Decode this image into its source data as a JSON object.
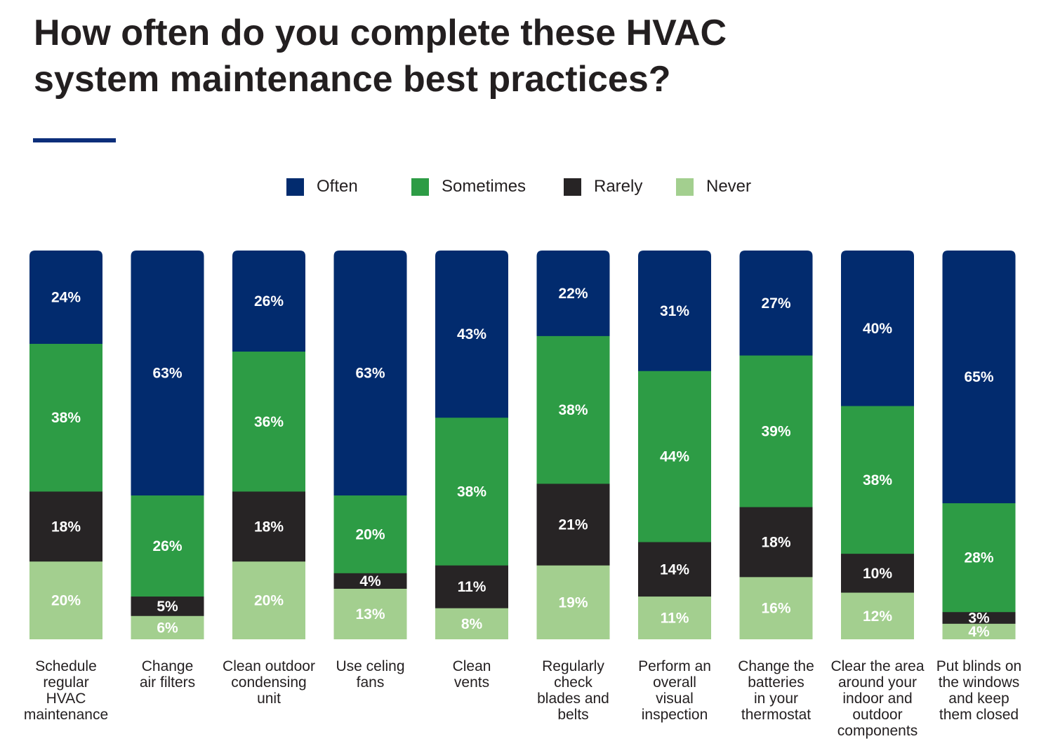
{
  "chart_data": {
    "type": "bar",
    "stacked": true,
    "percent": true,
    "title": "How often do you complete these HVAC system maintenance best practices?",
    "title_lines": [
      "How often do you complete these HVAC",
      "system maintenance best practices?"
    ],
    "legend_position": "top",
    "categories": [
      "Schedule regular HVAC maintenance",
      "Change air filters",
      "Clean outdoor condensing unit",
      "Use celing fans",
      "Clean vents",
      "Regularly check blades and belts",
      "Perform an overall visual inspection",
      "Change the batteries in your thermostat",
      "Clear the area around your indoor and outdoor components",
      "Put blinds on the windows and keep them closed"
    ],
    "category_lines": [
      [
        "Schedule",
        "regular",
        "HVAC",
        "maintenance"
      ],
      [
        "Change",
        "air filters"
      ],
      [
        "Clean outdoor",
        "condensing",
        "unit"
      ],
      [
        "Use celing",
        "fans"
      ],
      [
        "Clean",
        "vents"
      ],
      [
        "Regularly",
        "check",
        "blades and",
        "belts"
      ],
      [
        "Perform an",
        "overall",
        "visual",
        "inspection"
      ],
      [
        "Change the",
        "batteries",
        "in your",
        "thermostat"
      ],
      [
        "Clear the area",
        "around your",
        "indoor and",
        "outdoor",
        "components"
      ],
      [
        "Put blinds on",
        "the windows",
        "and keep",
        "them closed"
      ]
    ],
    "series": [
      {
        "name": "Often",
        "color": "#022b6e",
        "values": [
          24,
          63,
          26,
          63,
          43,
          22,
          31,
          27,
          40,
          65
        ]
      },
      {
        "name": "Sometimes",
        "color": "#2d9c45",
        "values": [
          38,
          26,
          36,
          20,
          38,
          38,
          44,
          39,
          38,
          28
        ]
      },
      {
        "name": "Rarely",
        "color": "#272425",
        "values": [
          18,
          5,
          18,
          4,
          11,
          21,
          14,
          18,
          10,
          3
        ]
      },
      {
        "name": "Never",
        "color": "#a3cf8f",
        "values": [
          20,
          6,
          20,
          13,
          8,
          19,
          11,
          16,
          12,
          4
        ]
      }
    ],
    "ylim": [
      0,
      100
    ]
  }
}
